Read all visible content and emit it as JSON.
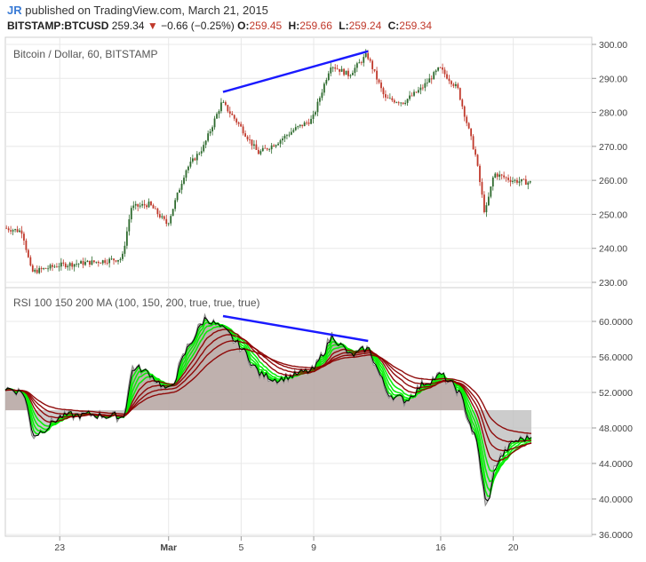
{
  "header": {
    "user": "JR",
    "published": "published on TradingView.com, March 21, 2015",
    "symbol": "BITSTAMP:BTCUSD",
    "last": "259.34",
    "change": "−0.66 (−0.25%)",
    "o_label": "O:",
    "o_value": "259.45",
    "h_label": "H:",
    "h_value": "259.66",
    "l_label": "L:",
    "l_value": "259.24",
    "c_label": "C:",
    "c_value": "259.34"
  },
  "chart_data": [
    {
      "type": "candlestick",
      "title": "Bitcoin / Dollar, 60, BITSTAMP",
      "ylim": [
        230,
        300
      ],
      "y_ticks": [
        "300.00",
        "290.00",
        "280.00",
        "270.00",
        "260.00",
        "250.00",
        "240.00",
        "230.00"
      ],
      "x_ticks": [
        "23",
        "Mar",
        "5",
        "9",
        "16",
        "20"
      ],
      "x_days_visible": [
        "Feb 20",
        "Mar 21"
      ],
      "price_path": [
        {
          "x": "Feb 20",
          "y": 246
        },
        {
          "x": "Feb 21",
          "y": 245
        },
        {
          "x": "Feb 21.5",
          "y": 233
        },
        {
          "x": "Feb 23",
          "y": 235
        },
        {
          "x": "Feb 25",
          "y": 236
        },
        {
          "x": "Feb 26.5",
          "y": 237
        },
        {
          "x": "Feb 27",
          "y": 252
        },
        {
          "x": "Feb 28",
          "y": 253
        },
        {
          "x": "Mar 1",
          "y": 247
        },
        {
          "x": "Mar 2",
          "y": 263
        },
        {
          "x": "Mar 3",
          "y": 270
        },
        {
          "x": "Mar 4",
          "y": 283
        },
        {
          "x": "Mar 5",
          "y": 276
        },
        {
          "x": "Mar 6",
          "y": 268
        },
        {
          "x": "Mar 7",
          "y": 271
        },
        {
          "x": "Mar 8",
          "y": 275
        },
        {
          "x": "Mar 9",
          "y": 278
        },
        {
          "x": "Mar 10",
          "y": 294
        },
        {
          "x": "Mar 11",
          "y": 291
        },
        {
          "x": "Mar 12",
          "y": 297
        },
        {
          "x": "Mar 13",
          "y": 284
        },
        {
          "x": "Mar 14",
          "y": 283
        },
        {
          "x": "Mar 15",
          "y": 287
        },
        {
          "x": "Mar 16",
          "y": 293
        },
        {
          "x": "Mar 17",
          "y": 287
        },
        {
          "x": "Mar 18",
          "y": 267
        },
        {
          "x": "Mar 18.5",
          "y": 250
        },
        {
          "x": "Mar 19",
          "y": 262
        },
        {
          "x": "Mar 20",
          "y": 260
        },
        {
          "x": "Mar 21",
          "y": 259.34
        }
      ],
      "trendline": {
        "from": {
          "x": "Mar 4",
          "y": 286
        },
        "to": {
          "x": "Mar 12",
          "y": 298
        },
        "color": "#1a1aff"
      },
      "last_price": 259.34
    },
    {
      "type": "line",
      "title": "RSI 100 150 200 MA (100, 150, 200, true, true, true)",
      "ylim": [
        36,
        62
      ],
      "y_ticks": [
        "60.0000",
        "56.0000",
        "52.0000",
        "48.0000",
        "44.0000",
        "40.0000",
        "36.0000"
      ],
      "rsi_path": [
        {
          "x": "Feb 20",
          "y": 52.5
        },
        {
          "x": "Feb 21",
          "y": 52
        },
        {
          "x": "Feb 21.5",
          "y": 47
        },
        {
          "x": "Feb 23",
          "y": 49.3
        },
        {
          "x": "Feb 25",
          "y": 49.5
        },
        {
          "x": "Feb 26.5",
          "y": 49.2
        },
        {
          "x": "Feb 27",
          "y": 55
        },
        {
          "x": "Feb 28",
          "y": 54
        },
        {
          "x": "Mar 1",
          "y": 52
        },
        {
          "x": "Mar 2",
          "y": 57
        },
        {
          "x": "Mar 3",
          "y": 60.5
        },
        {
          "x": "Mar 4",
          "y": 59
        },
        {
          "x": "Mar 5",
          "y": 57
        },
        {
          "x": "Mar 6",
          "y": 54
        },
        {
          "x": "Mar 7",
          "y": 53.5
        },
        {
          "x": "Mar 8",
          "y": 54
        },
        {
          "x": "Mar 9",
          "y": 54.5
        },
        {
          "x": "Mar 10",
          "y": 58.5
        },
        {
          "x": "Mar 11",
          "y": 56
        },
        {
          "x": "Mar 12",
          "y": 57
        },
        {
          "x": "Mar 13",
          "y": 52
        },
        {
          "x": "Mar 14",
          "y": 51
        },
        {
          "x": "Mar 15",
          "y": 53
        },
        {
          "x": "Mar 16",
          "y": 54
        },
        {
          "x": "Mar 17",
          "y": 52
        },
        {
          "x": "Mar 18",
          "y": 46
        },
        {
          "x": "Mar 18.5",
          "y": 38.5
        },
        {
          "x": "Mar 19",
          "y": 44
        },
        {
          "x": "Mar 20",
          "y": 46.5
        },
        {
          "x": "Mar 21",
          "y": 47
        }
      ],
      "neutral_band": {
        "from": 50,
        "color": "#b8a9a5"
      },
      "trendline": {
        "from": {
          "x": "Mar 4",
          "y": 60.6
        },
        "to": {
          "x": "Mar 12",
          "y": 57.8
        },
        "color": "#1a1aff"
      }
    }
  ],
  "colors": {
    "up_candle": "#2d6a2d",
    "down_candle": "#c0392b",
    "rsi_fast": "#00ee00",
    "rsi_slow": "#8b0000",
    "trendline": "#1a1aff",
    "grid": "#e8e8e8",
    "axis_text": "#444444"
  }
}
